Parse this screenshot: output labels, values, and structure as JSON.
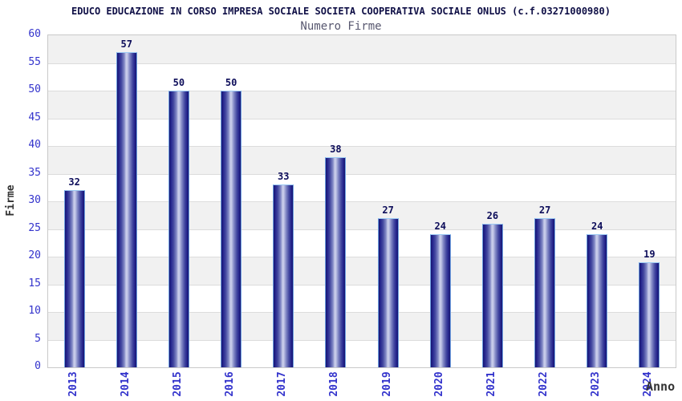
{
  "chart_data": {
    "type": "bar",
    "title": "EDUCO EDUCAZIONE IN CORSO IMPRESA SOCIALE SOCIETA COOPERATIVA SOCIALE ONLUS (c.f.03271000980)",
    "subtitle": "Numero Firme",
    "categories": [
      "2013",
      "2014",
      "2015",
      "2016",
      "2017",
      "2018",
      "2019",
      "2020",
      "2021",
      "2022",
      "2023",
      "2024"
    ],
    "values": [
      32,
      57,
      50,
      50,
      33,
      38,
      27,
      24,
      26,
      27,
      24,
      19
    ],
    "xlabel": "Anno",
    "ylabel": "Firme",
    "ylim": [
      0,
      60
    ],
    "ytick_step": 5,
    "ytick_labels": [
      "0",
      "5",
      "10",
      "15",
      "20",
      "25",
      "30",
      "35",
      "40",
      "45",
      "50",
      "55",
      "60"
    ],
    "grid": "horizontal alternating bands, gray and white, every 5 units",
    "legend": "none",
    "bar_value_labels_shown": true,
    "colors": {
      "bar_dark": "#16166e",
      "bar_light": "#c7cbe9",
      "bar_outline": "#6e9fe0",
      "bar_top_cap": "#9ccaf4",
      "tick_label": "#3333cc",
      "value_label": "#0d0d5a",
      "title": "#0f0f46",
      "subtitle": "#585870",
      "band_gray": "#f1f1f1",
      "band_white": "#ffffff",
      "grid_line": "#dcdcdc",
      "plot_border": "#c9c9c9",
      "axis_title": "#333333",
      "background": "#ffffff"
    }
  }
}
